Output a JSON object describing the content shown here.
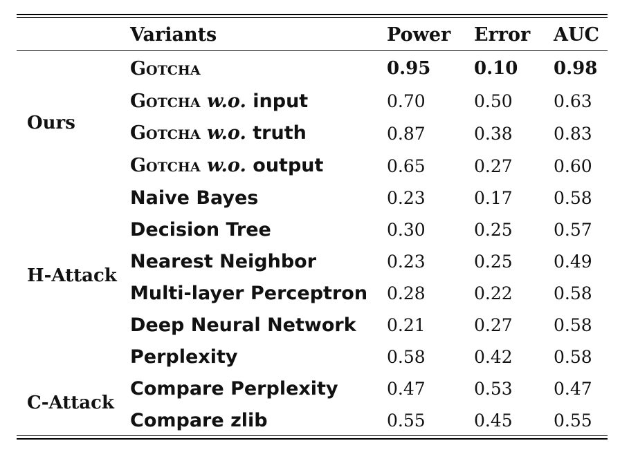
{
  "table": {
    "headers": {
      "variants": "Variants",
      "power": "Power",
      "error": "Error",
      "auc": "AUC"
    },
    "groups": {
      "ours": "Ours",
      "h_attack": "H-Attack",
      "c_attack": "C-Attack"
    },
    "rows": [
      {
        "name_sc": "Gotcha",
        "name_it": "",
        "name_rest": "",
        "power": "0.95",
        "error": "0.10",
        "auc": "0.98"
      },
      {
        "name_sc": "Gotcha",
        "name_it": "w.o.",
        "name_rest": "input",
        "power": "0.70",
        "error": "0.50",
        "auc": "0.63"
      },
      {
        "name_sc": "Gotcha",
        "name_it": "w.o.",
        "name_rest": "truth",
        "power": "0.87",
        "error": "0.38",
        "auc": "0.83"
      },
      {
        "name_sc": "Gotcha",
        "name_it": "w.o.",
        "name_rest": "output",
        "power": "0.65",
        "error": "0.27",
        "auc": "0.60"
      },
      {
        "name": "Naive Bayes",
        "power": "0.23",
        "error": "0.17",
        "auc": "0.58"
      },
      {
        "name": "Decision Tree",
        "power": "0.30",
        "error": "0.25",
        "auc": "0.57"
      },
      {
        "name": "Nearest Neighbor",
        "power": "0.23",
        "error": "0.25",
        "auc": "0.49"
      },
      {
        "name": "Multi-layer Perceptron",
        "power": "0.28",
        "error": "0.22",
        "auc": "0.58"
      },
      {
        "name": "Deep Neural Network",
        "power": "0.21",
        "error": "0.27",
        "auc": "0.58"
      },
      {
        "name": "Perplexity",
        "power": "0.58",
        "error": "0.42",
        "auc": "0.58"
      },
      {
        "name": "Compare Perplexity",
        "power": "0.47",
        "error": "0.53",
        "auc": "0.47"
      },
      {
        "name": "Compare zlib",
        "power": "0.55",
        "error": "0.45",
        "auc": "0.55"
      }
    ]
  }
}
